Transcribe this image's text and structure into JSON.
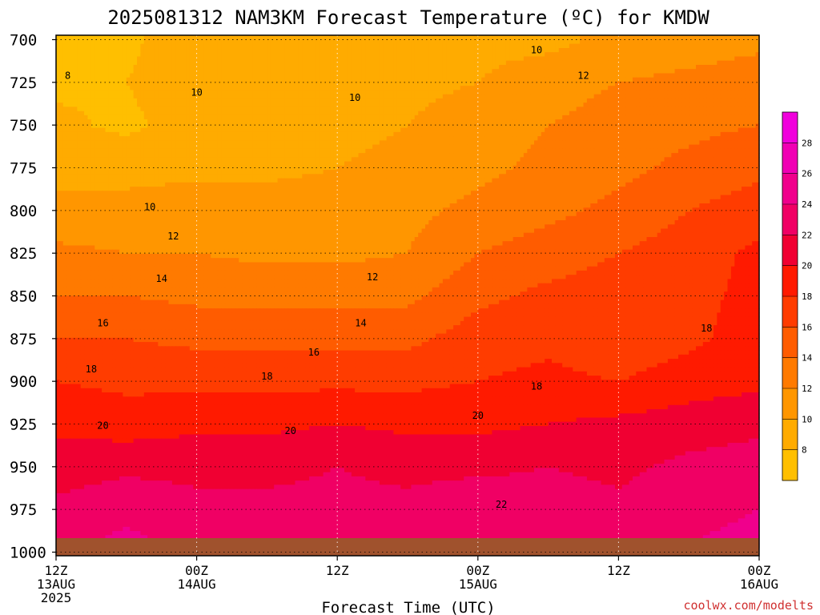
{
  "chart_data": {
    "type": "heatmap",
    "title": "2025081312 NAM3KM Forecast Temperature (ºC) for KMDW",
    "xlabel": "Forecast Time (UTC)",
    "ylabel": "",
    "credit": "coolwx.com/modelts",
    "y_ticks": [
      "700",
      "725",
      "750",
      "775",
      "800",
      "825",
      "850",
      "875",
      "900",
      "925",
      "950",
      "975",
      "1000"
    ],
    "y_range": [
      700,
      1000
    ],
    "y_levels": [
      700,
      725,
      750,
      775,
      800,
      825,
      850,
      875,
      900,
      925,
      950,
      975,
      995
    ],
    "x_range_hours": [
      0,
      60
    ],
    "x_ticks": [
      {
        "hour": 0,
        "line1": "12Z",
        "line2": "13AUG",
        "line3": "2025"
      },
      {
        "hour": 12,
        "line1": "00Z",
        "line2": "14AUG",
        "line3": ""
      },
      {
        "hour": 24,
        "line1": "12Z",
        "line2": "",
        "line3": ""
      },
      {
        "hour": 36,
        "line1": "00Z",
        "line2": "15AUG",
        "line3": ""
      },
      {
        "hour": 48,
        "line1": "12Z",
        "line2": "",
        "line3": ""
      },
      {
        "hour": 60,
        "line1": "00Z",
        "line2": "16AUG",
        "line3": ""
      }
    ],
    "x_hours": [
      0,
      6,
      12,
      18,
      24,
      30,
      36,
      42,
      48,
      54,
      60
    ],
    "temperature_grid": [
      [
        7.5,
        7.5,
        9.5,
        9.5,
        9.5,
        9.5,
        9.5,
        9.5,
        10.5,
        11.0,
        11.5
      ],
      [
        7.5,
        8.0,
        9.5,
        9.5,
        9.0,
        9.5,
        10.0,
        11.0,
        12.0,
        12.5,
        13.0
      ],
      [
        8.5,
        7.5,
        9.0,
        9.5,
        9.5,
        10.0,
        11.0,
        12.0,
        13.0,
        13.5,
        14.0
      ],
      [
        9.5,
        9.5,
        9.5,
        9.5,
        10.0,
        10.5,
        11.5,
        12.5,
        13.5,
        14.5,
        15.5
      ],
      [
        10.5,
        10.5,
        11.0,
        11.0,
        11.0,
        11.5,
        12.5,
        13.5,
        14.5,
        16.0,
        17.0
      ],
      [
        12.5,
        12.0,
        12.0,
        11.5,
        11.5,
        12.0,
        14.0,
        15.0,
        16.0,
        17.0,
        18.5
      ],
      [
        14.0,
        14.0,
        13.5,
        13.5,
        13.5,
        13.5,
        15.5,
        16.5,
        17.0,
        17.5,
        18.5
      ],
      [
        16.0,
        16.0,
        15.5,
        15.5,
        15.5,
        15.5,
        17.0,
        17.5,
        16.5,
        17.5,
        19.0
      ],
      [
        18.0,
        17.5,
        17.5,
        17.5,
        17.5,
        17.5,
        18.0,
        18.5,
        18.0,
        19.0,
        19.5
      ],
      [
        19.5,
        19.0,
        19.5,
        19.5,
        20.0,
        19.5,
        19.5,
        20.0,
        20.5,
        21.0,
        21.5
      ],
      [
        21.0,
        21.5,
        21.5,
        21.5,
        22.0,
        21.5,
        21.5,
        22.0,
        21.5,
        22.5,
        23.0
      ],
      [
        22.5,
        23.5,
        22.5,
        22.5,
        22.5,
        22.5,
        23.5,
        23.0,
        22.5,
        23.5,
        24.0
      ],
      [
        23.5,
        24.5,
        23.5,
        23.0,
        23.0,
        23.0,
        24.0,
        23.5,
        23.0,
        24.0,
        24.5
      ]
    ],
    "contour_labels": [
      {
        "text": "8",
        "hour": 1,
        "level": 721
      },
      {
        "text": "10",
        "hour": 12,
        "level": 731
      },
      {
        "text": "10",
        "hour": 25.5,
        "level": 734
      },
      {
        "text": "10",
        "hour": 41,
        "level": 706
      },
      {
        "text": "12",
        "hour": 45,
        "level": 721
      },
      {
        "text": "10",
        "hour": 8,
        "level": 798
      },
      {
        "text": "12",
        "hour": 10,
        "level": 815
      },
      {
        "text": "12",
        "hour": 27,
        "level": 839
      },
      {
        "text": "14",
        "hour": 9,
        "level": 840
      },
      {
        "text": "14",
        "hour": 26,
        "level": 866
      },
      {
        "text": "16",
        "hour": 4,
        "level": 866
      },
      {
        "text": "16",
        "hour": 22,
        "level": 883
      },
      {
        "text": "18",
        "hour": 3,
        "level": 893
      },
      {
        "text": "18",
        "hour": 18,
        "level": 897
      },
      {
        "text": "18",
        "hour": 41,
        "level": 903
      },
      {
        "text": "18",
        "hour": 55.5,
        "level": 869
      },
      {
        "text": "20",
        "hour": 4,
        "level": 926
      },
      {
        "text": "20",
        "hour": 20,
        "level": 929
      },
      {
        "text": "20",
        "hour": 36,
        "level": 920
      },
      {
        "text": "22",
        "hour": 38,
        "level": 972
      }
    ],
    "colorbar": {
      "ticks": [
        "8",
        "10",
        "12",
        "14",
        "16",
        "18",
        "20",
        "22",
        "24",
        "26",
        "28"
      ],
      "bins": [
        {
          "lo": 6,
          "hi": 8,
          "color": "#ffbf00"
        },
        {
          "lo": 8,
          "hi": 10,
          "color": "#ffab00"
        },
        {
          "lo": 10,
          "hi": 12,
          "color": "#ff9600"
        },
        {
          "lo": 12,
          "hi": 14,
          "color": "#ff7a00"
        },
        {
          "lo": 14,
          "hi": 16,
          "color": "#ff5c00"
        },
        {
          "lo": 16,
          "hi": 18,
          "color": "#ff3c00"
        },
        {
          "lo": 18,
          "hi": 20,
          "color": "#ff1a00"
        },
        {
          "lo": 20,
          "hi": 22,
          "color": "#f00032"
        },
        {
          "lo": 22,
          "hi": 24,
          "color": "#f00064"
        },
        {
          "lo": 24,
          "hi": 26,
          "color": "#f0008c"
        },
        {
          "lo": 26,
          "hi": 28,
          "color": "#f000b4"
        },
        {
          "lo": 28,
          "hi": 30,
          "color": "#f000dc"
        }
      ]
    },
    "ground_color": "#a0522d",
    "grid": true
  }
}
